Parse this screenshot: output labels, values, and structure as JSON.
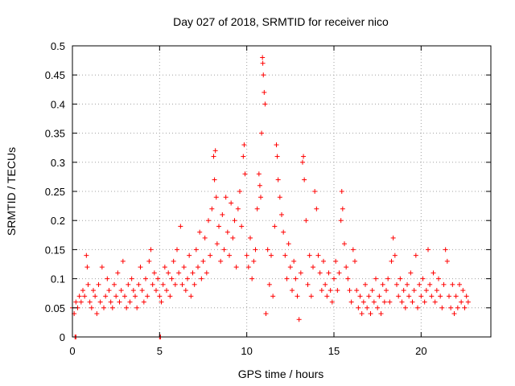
{
  "chart_data": {
    "type": "scatter",
    "title": "Day 027 of 2018, SRMTID for receiver nico",
    "xlabel": "GPS time / hours",
    "ylabel": "SRMTID / TECUs",
    "xlim": [
      0,
      24
    ],
    "ylim": [
      0,
      0.5
    ],
    "xticks": [
      0,
      5,
      10,
      15,
      20
    ],
    "yticks": [
      0,
      0.05,
      0.1,
      0.15,
      0.2,
      0.25,
      0.3,
      0.35,
      0.4,
      0.45,
      0.5
    ],
    "grid": true,
    "legend": "none",
    "marker": "plus",
    "color": "#ff0000",
    "series": [
      {
        "points": [
          [
            0.0,
            0.05
          ],
          [
            0.1,
            0.04
          ],
          [
            0.2,
            0.06
          ],
          [
            0.3,
            0.05
          ],
          [
            0.4,
            0.07
          ],
          [
            0.5,
            0.06
          ],
          [
            0.6,
            0.08
          ],
          [
            0.7,
            0.07
          ],
          [
            0.8,
            0.14
          ],
          [
            0.85,
            0.12
          ],
          [
            0.9,
            0.09
          ],
          [
            1.0,
            0.06
          ],
          [
            1.1,
            0.05
          ],
          [
            1.2,
            0.08
          ],
          [
            1.3,
            0.07
          ],
          [
            1.4,
            0.04
          ],
          [
            1.5,
            0.09
          ],
          [
            1.6,
            0.06
          ],
          [
            1.7,
            0.12
          ],
          [
            1.8,
            0.05
          ],
          [
            1.9,
            0.07
          ],
          [
            2.0,
            0.1
          ],
          [
            2.1,
            0.08
          ],
          [
            2.2,
            0.06
          ],
          [
            2.3,
            0.05
          ],
          [
            2.4,
            0.09
          ],
          [
            2.5,
            0.07
          ],
          [
            2.6,
            0.11
          ],
          [
            2.7,
            0.06
          ],
          [
            2.8,
            0.08
          ],
          [
            2.9,
            0.13
          ],
          [
            3.0,
            0.07
          ],
          [
            3.1,
            0.05
          ],
          [
            3.2,
            0.09
          ],
          [
            3.3,
            0.06
          ],
          [
            3.4,
            0.1
          ],
          [
            3.5,
            0.08
          ],
          [
            3.6,
            0.07
          ],
          [
            3.7,
            0.05
          ],
          [
            3.8,
            0.09
          ],
          [
            3.9,
            0.12
          ],
          [
            4.0,
            0.08
          ],
          [
            4.1,
            0.06
          ],
          [
            4.2,
            0.1
          ],
          [
            4.3,
            0.07
          ],
          [
            4.4,
            0.13
          ],
          [
            4.5,
            0.15
          ],
          [
            4.6,
            0.09
          ],
          [
            4.7,
            0.11
          ],
          [
            4.8,
            0.08
          ],
          [
            4.9,
            0.1
          ],
          [
            5.0,
            0.07
          ],
          [
            5.1,
            0.06
          ],
          [
            5.2,
            0.09
          ],
          [
            5.3,
            0.12
          ],
          [
            5.4,
            0.08
          ],
          [
            5.5,
            0.11
          ],
          [
            5.6,
            0.07
          ],
          [
            5.7,
            0.1
          ],
          [
            5.8,
            0.13
          ],
          [
            5.9,
            0.09
          ],
          [
            6.0,
            0.15
          ],
          [
            6.1,
            0.11
          ],
          [
            6.2,
            0.19
          ],
          [
            6.3,
            0.09
          ],
          [
            6.4,
            0.12
          ],
          [
            6.5,
            0.08
          ],
          [
            6.6,
            0.1
          ],
          [
            6.7,
            0.14
          ],
          [
            6.8,
            0.07
          ],
          [
            6.9,
            0.11
          ],
          [
            7.0,
            0.09
          ],
          [
            7.1,
            0.15
          ],
          [
            7.2,
            0.12
          ],
          [
            7.3,
            0.18
          ],
          [
            7.4,
            0.1
          ],
          [
            7.5,
            0.13
          ],
          [
            7.6,
            0.17
          ],
          [
            7.7,
            0.11
          ],
          [
            7.8,
            0.2
          ],
          [
            7.9,
            0.14
          ],
          [
            8.0,
            0.22
          ],
          [
            8.1,
            0.31
          ],
          [
            8.15,
            0.27
          ],
          [
            8.2,
            0.32
          ],
          [
            8.25,
            0.24
          ],
          [
            8.3,
            0.16
          ],
          [
            8.4,
            0.19
          ],
          [
            8.5,
            0.13
          ],
          [
            8.6,
            0.21
          ],
          [
            8.7,
            0.15
          ],
          [
            8.8,
            0.24
          ],
          [
            8.9,
            0.18
          ],
          [
            9.0,
            0.14
          ],
          [
            9.1,
            0.23
          ],
          [
            9.2,
            0.17
          ],
          [
            9.3,
            0.2
          ],
          [
            9.4,
            0.12
          ],
          [
            9.5,
            0.22
          ],
          [
            9.6,
            0.25
          ],
          [
            9.7,
            0.19
          ],
          [
            9.8,
            0.31
          ],
          [
            9.85,
            0.33
          ],
          [
            9.9,
            0.28
          ],
          [
            10.0,
            0.14
          ],
          [
            10.1,
            0.12
          ],
          [
            10.2,
            0.17
          ],
          [
            10.3,
            0.1
          ],
          [
            10.4,
            0.13
          ],
          [
            10.5,
            0.15
          ],
          [
            10.6,
            0.22
          ],
          [
            10.7,
            0.28
          ],
          [
            10.75,
            0.26
          ],
          [
            10.8,
            0.24
          ],
          [
            10.85,
            0.35
          ],
          [
            10.9,
            0.48
          ],
          [
            10.92,
            0.47
          ],
          [
            10.95,
            0.45
          ],
          [
            11.0,
            0.42
          ],
          [
            11.05,
            0.4
          ],
          [
            11.1,
            0.04
          ],
          [
            11.2,
            0.15
          ],
          [
            11.3,
            0.09
          ],
          [
            11.4,
            0.14
          ],
          [
            11.5,
            0.07
          ],
          [
            11.6,
            0.19
          ],
          [
            11.7,
            0.33
          ],
          [
            11.75,
            0.31
          ],
          [
            11.8,
            0.27
          ],
          [
            11.9,
            0.24
          ],
          [
            12.0,
            0.21
          ],
          [
            12.1,
            0.18
          ],
          [
            12.2,
            0.14
          ],
          [
            12.3,
            0.1
          ],
          [
            12.4,
            0.16
          ],
          [
            12.5,
            0.12
          ],
          [
            12.6,
            0.08
          ],
          [
            12.7,
            0.13
          ],
          [
            12.8,
            0.1
          ],
          [
            12.9,
            0.07
          ],
          [
            13.0,
            0.03
          ],
          [
            13.1,
            0.11
          ],
          [
            13.2,
            0.3
          ],
          [
            13.25,
            0.31
          ],
          [
            13.3,
            0.27
          ],
          [
            13.4,
            0.2
          ],
          [
            13.5,
            0.09
          ],
          [
            13.6,
            0.14
          ],
          [
            13.7,
            0.07
          ],
          [
            13.8,
            0.12
          ],
          [
            13.9,
            0.25
          ],
          [
            14.0,
            0.22
          ],
          [
            14.1,
            0.14
          ],
          [
            14.2,
            0.11
          ],
          [
            14.3,
            0.08
          ],
          [
            14.4,
            0.13
          ],
          [
            14.5,
            0.09
          ],
          [
            14.6,
            0.07
          ],
          [
            14.7,
            0.11
          ],
          [
            14.8,
            0.08
          ],
          [
            14.9,
            0.06
          ],
          [
            15.0,
            0.1
          ],
          [
            15.1,
            0.13
          ],
          [
            15.2,
            0.08
          ],
          [
            15.3,
            0.11
          ],
          [
            15.4,
            0.2
          ],
          [
            15.45,
            0.25
          ],
          [
            15.5,
            0.22
          ],
          [
            15.6,
            0.16
          ],
          [
            15.7,
            0.12
          ],
          [
            15.8,
            0.1
          ],
          [
            15.9,
            0.08
          ],
          [
            16.0,
            0.06
          ],
          [
            16.1,
            0.15
          ],
          [
            16.2,
            0.13
          ],
          [
            16.3,
            0.08
          ],
          [
            16.4,
            0.05
          ],
          [
            16.5,
            0.07
          ],
          [
            16.6,
            0.04
          ],
          [
            16.7,
            0.06
          ],
          [
            16.8,
            0.09
          ],
          [
            16.9,
            0.05
          ],
          [
            17.0,
            0.07
          ],
          [
            17.1,
            0.04
          ],
          [
            17.2,
            0.08
          ],
          [
            17.3,
            0.06
          ],
          [
            17.4,
            0.1
          ],
          [
            17.5,
            0.05
          ],
          [
            17.6,
            0.07
          ],
          [
            17.7,
            0.04
          ],
          [
            17.8,
            0.09
          ],
          [
            17.9,
            0.06
          ],
          [
            18.0,
            0.08
          ],
          [
            18.1,
            0.1
          ],
          [
            18.2,
            0.06
          ],
          [
            18.3,
            0.13
          ],
          [
            18.4,
            0.17
          ],
          [
            18.5,
            0.14
          ],
          [
            18.6,
            0.09
          ],
          [
            18.7,
            0.07
          ],
          [
            18.8,
            0.1
          ],
          [
            18.9,
            0.06
          ],
          [
            19.0,
            0.08
          ],
          [
            19.1,
            0.05
          ],
          [
            19.2,
            0.09
          ],
          [
            19.3,
            0.07
          ],
          [
            19.4,
            0.11
          ],
          [
            19.5,
            0.06
          ],
          [
            19.6,
            0.08
          ],
          [
            19.7,
            0.14
          ],
          [
            19.8,
            0.05
          ],
          [
            19.9,
            0.09
          ],
          [
            20.0,
            0.07
          ],
          [
            20.1,
            0.1
          ],
          [
            20.2,
            0.06
          ],
          [
            20.3,
            0.08
          ],
          [
            20.4,
            0.15
          ],
          [
            20.5,
            0.09
          ],
          [
            20.6,
            0.07
          ],
          [
            20.7,
            0.11
          ],
          [
            20.8,
            0.06
          ],
          [
            20.9,
            0.08
          ],
          [
            21.0,
            0.1
          ],
          [
            21.1,
            0.07
          ],
          [
            21.2,
            0.05
          ],
          [
            21.3,
            0.09
          ],
          [
            21.4,
            0.15
          ],
          [
            21.5,
            0.13
          ],
          [
            21.6,
            0.07
          ],
          [
            21.7,
            0.05
          ],
          [
            21.8,
            0.09
          ],
          [
            21.9,
            0.04
          ],
          [
            22.0,
            0.07
          ],
          [
            22.1,
            0.05
          ],
          [
            22.2,
            0.09
          ],
          [
            22.3,
            0.06
          ],
          [
            22.4,
            0.08
          ],
          [
            22.5,
            0.05
          ],
          [
            22.6,
            0.07
          ],
          [
            22.7,
            0.06
          ],
          [
            0.15,
            0.0
          ],
          [
            0.2,
            0.0
          ],
          [
            5.0,
            0.0
          ],
          [
            5.05,
            0.0
          ]
        ]
      }
    ]
  }
}
